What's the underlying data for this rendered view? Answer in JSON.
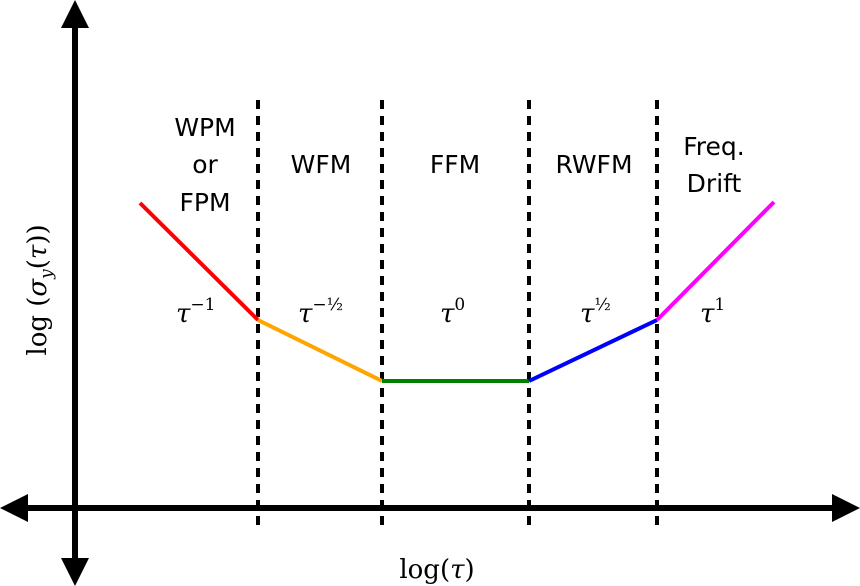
{
  "diagram": {
    "x_axis_label": {
      "fn": "log",
      "arg": "τ"
    },
    "y_axis_label": {
      "fn": "log",
      "sigma": "σ",
      "sub": "y",
      "arg": "τ"
    },
    "regions": [
      {
        "name": [
          "WPM",
          "or",
          "FPM"
        ],
        "exponent": "−1",
        "color": "#ff0000"
      },
      {
        "name": [
          "WFM"
        ],
        "exponent": "−½",
        "color": "#ffa500"
      },
      {
        "name": [
          "FFM"
        ],
        "exponent": "0",
        "color": "#008000"
      },
      {
        "name": [
          "RWFM"
        ],
        "exponent": "½",
        "color": "#0000ff"
      },
      {
        "name": [
          "Freq.",
          "Drift"
        ],
        "exponent": "1",
        "color": "#ff00ff"
      }
    ],
    "tau_symbol": "τ",
    "axis_color": "#000000"
  }
}
